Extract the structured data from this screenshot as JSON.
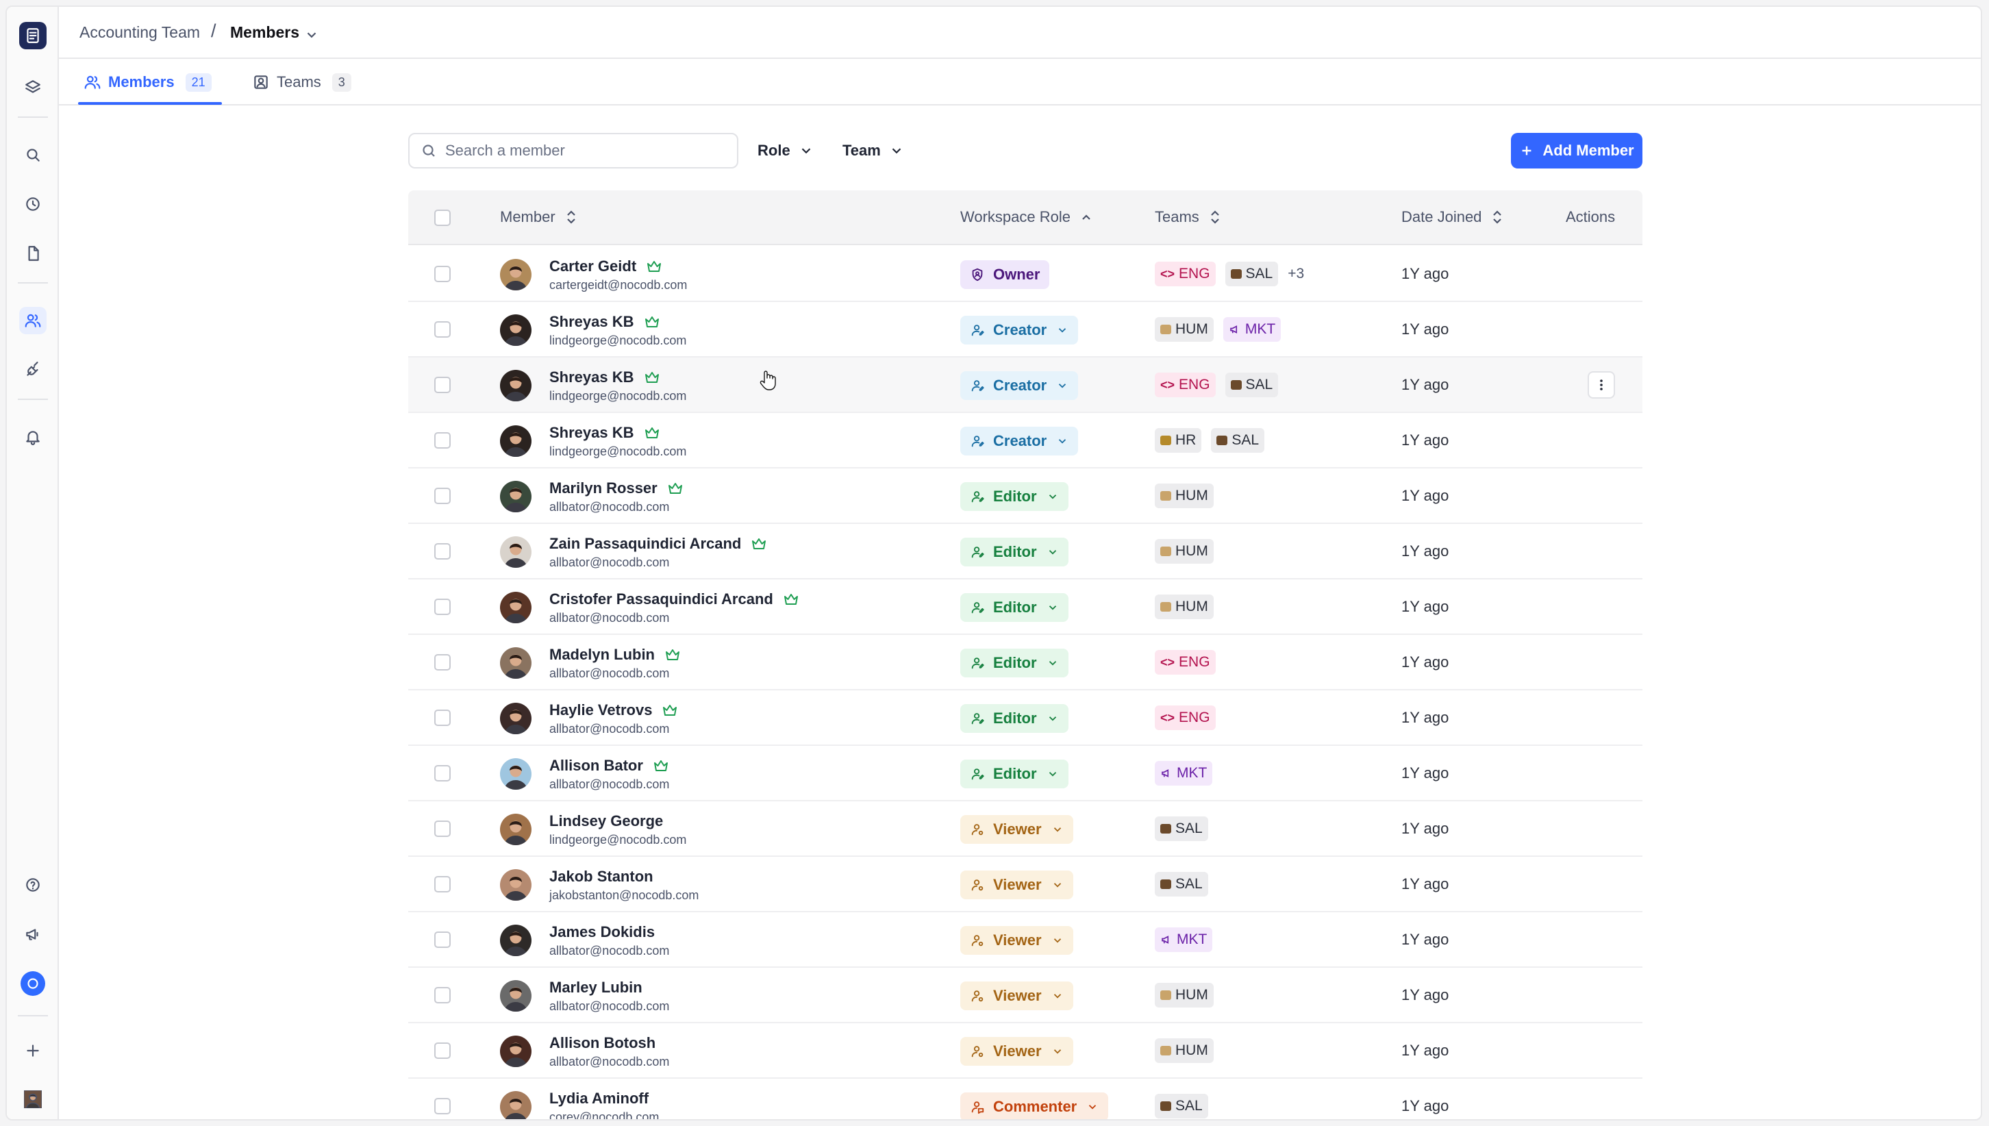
{
  "breadcrumb": {
    "workspace": "Accounting Team",
    "separator": "/",
    "current": "Members"
  },
  "tabs": [
    {
      "label": "Members",
      "count": "21"
    },
    {
      "label": "Teams",
      "count": "3"
    }
  ],
  "toolbar": {
    "search_placeholder": "Search a member",
    "role_filter": "Role",
    "team_filter": "Team",
    "add_button": "Add Member"
  },
  "columns": {
    "member": "Member",
    "role": "Workspace Role",
    "teams": "Teams",
    "date": "Date Joined",
    "actions": "Actions"
  },
  "rows": [
    {
      "name": "Carter Geidt",
      "email": "cartergeidt@nocodb.com",
      "crown": true,
      "role": "Owner",
      "roleKind": "owner",
      "teams": [
        "ENG",
        "SAL"
      ],
      "more": "+3",
      "date": "1Y ago",
      "av": "#b08a5a"
    },
    {
      "name": "Shreyas KB",
      "email": "lindgeorge@nocodb.com",
      "crown": true,
      "role": "Creator",
      "roleKind": "creator",
      "teams": [
        "HUM",
        "MKT"
      ],
      "date": "1Y ago",
      "av": "#2b2320"
    },
    {
      "name": "Shreyas KB",
      "email": "lindgeorge@nocodb.com",
      "crown": true,
      "role": "Creator",
      "roleKind": "creator",
      "teams": [
        "ENG",
        "SAL"
      ],
      "date": "1Y ago",
      "av": "#2b2320",
      "hover": true
    },
    {
      "name": "Shreyas KB",
      "email": "lindgeorge@nocodb.com",
      "crown": true,
      "role": "Creator",
      "roleKind": "creator",
      "teams": [
        "HR",
        "SAL"
      ],
      "date": "1Y ago",
      "av": "#2b2320"
    },
    {
      "name": "Marilyn Rosser",
      "email": "allbator@nocodb.com",
      "crown": true,
      "role": "Editor",
      "roleKind": "editor",
      "teams": [
        "HUM"
      ],
      "date": "1Y ago",
      "av": "#3a4a3c"
    },
    {
      "name": "Zain Passaquindici Arcand",
      "email": "allbator@nocodb.com",
      "crown": true,
      "role": "Editor",
      "roleKind": "editor",
      "teams": [
        "HUM"
      ],
      "date": "1Y ago",
      "av": "#d9d3cc"
    },
    {
      "name": "Cristofer Passaquindici Arcand",
      "email": "allbator@nocodb.com",
      "crown": true,
      "role": "Editor",
      "roleKind": "editor",
      "teams": [
        "HUM"
      ],
      "date": "1Y ago",
      "av": "#5a3526"
    },
    {
      "name": "Madelyn Lubin",
      "email": "allbator@nocodb.com",
      "crown": true,
      "role": "Editor",
      "roleKind": "editor",
      "teams": [
        "ENG"
      ],
      "date": "1Y ago",
      "av": "#8a7360"
    },
    {
      "name": "Haylie Vetrovs",
      "email": "allbator@nocodb.com",
      "crown": true,
      "role": "Editor",
      "roleKind": "editor",
      "teams": [
        "ENG"
      ],
      "date": "1Y ago",
      "av": "#3b2a28"
    },
    {
      "name": "Allison Bator",
      "email": "allbator@nocodb.com",
      "crown": true,
      "role": "Editor",
      "roleKind": "editor",
      "teams": [
        "MKT"
      ],
      "date": "1Y ago",
      "av": "#9fc6e0"
    },
    {
      "name": "Lindsey George",
      "email": "lindgeorge@nocodb.com",
      "crown": false,
      "role": "Viewer",
      "roleKind": "viewer",
      "teams": [
        "SAL"
      ],
      "date": "1Y ago",
      "av": "#a0724a"
    },
    {
      "name": "Jakob Stanton",
      "email": "jakobstanton@nocodb.com",
      "crown": false,
      "role": "Viewer",
      "roleKind": "viewer",
      "teams": [
        "SAL"
      ],
      "date": "1Y ago",
      "av": "#b58a70"
    },
    {
      "name": "James Dokidis",
      "email": "allbator@nocodb.com",
      "crown": false,
      "role": "Viewer",
      "roleKind": "viewer",
      "teams": [
        "MKT"
      ],
      "date": "1Y ago",
      "av": "#2e2a28"
    },
    {
      "name": "Marley Lubin",
      "email": "allbator@nocodb.com",
      "crown": false,
      "role": "Viewer",
      "roleKind": "viewer",
      "teams": [
        "HUM"
      ],
      "date": "1Y ago",
      "av": "#6a6a6a"
    },
    {
      "name": "Allison Botosh",
      "email": "allbator@nocodb.com",
      "crown": false,
      "role": "Viewer",
      "roleKind": "viewer",
      "teams": [
        "HUM"
      ],
      "date": "1Y ago",
      "av": "#4a2a22"
    },
    {
      "name": "Lydia Aminoff",
      "email": "corey@nocodb.com",
      "crown": false,
      "role": "Commenter",
      "roleKind": "commenter",
      "teams": [
        "SAL"
      ],
      "date": "1Y ago",
      "av": "#a57b5c"
    }
  ]
}
